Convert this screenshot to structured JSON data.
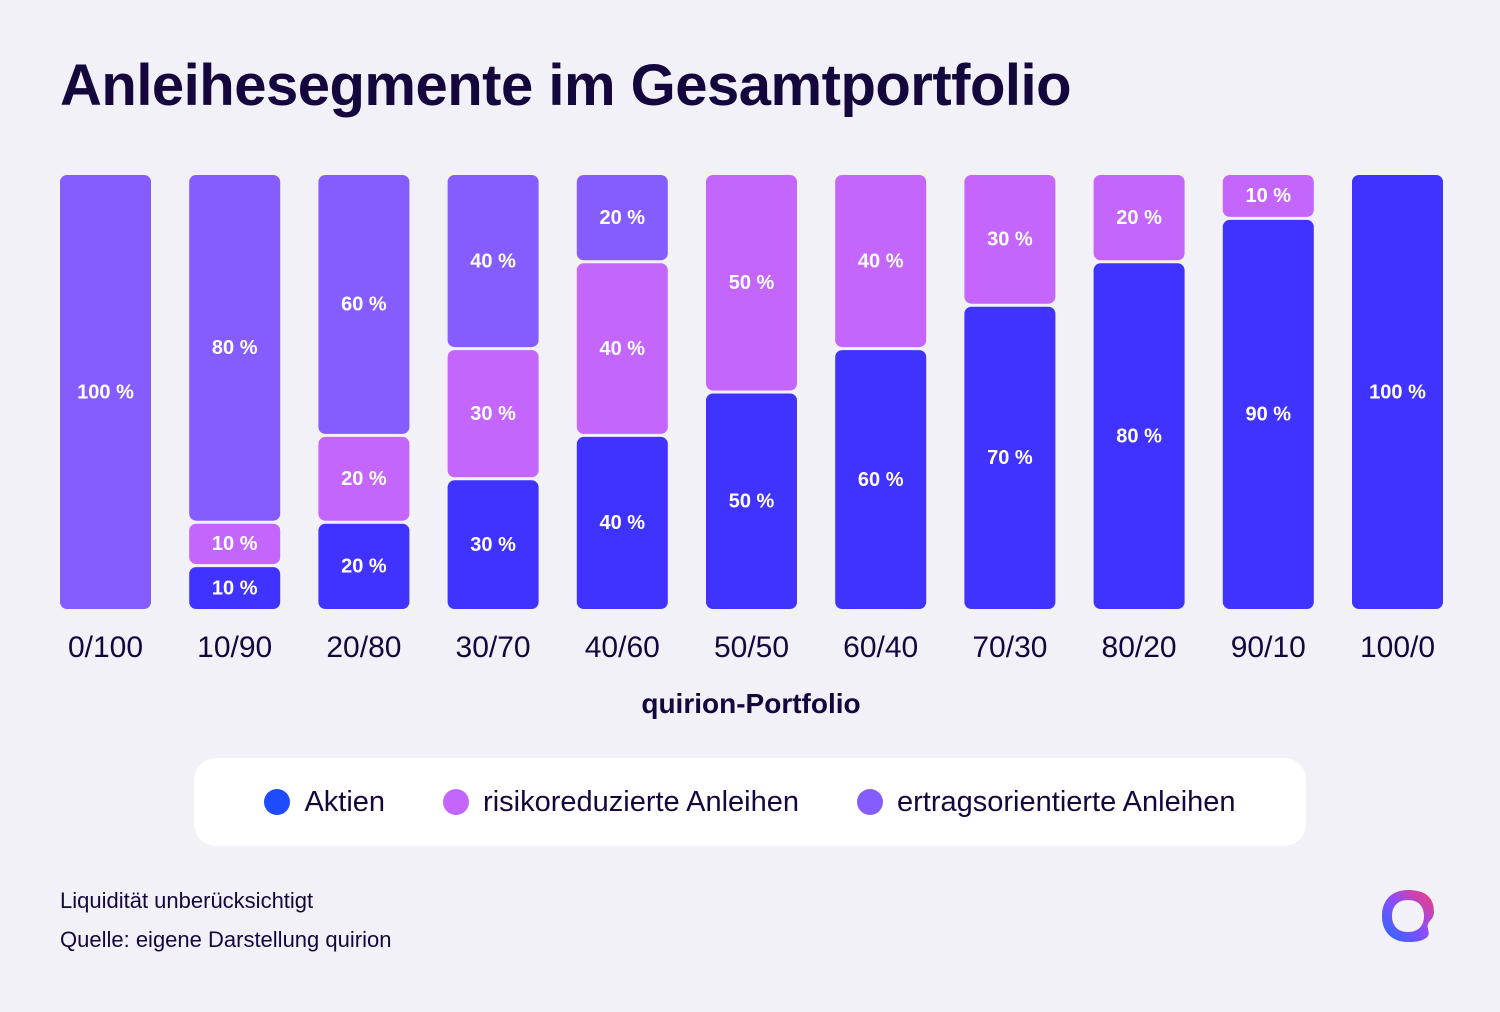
{
  "title": "Anleihesegmente im Gesamtportfolio",
  "colors": {
    "background": "#f2f1f7",
    "aktien": "#4032ff",
    "risikoreduzierte": "#c466fc",
    "ertragsorientierte": "#855dff",
    "text": "#15073d",
    "legend_aktien_dot": "#1f4bff"
  },
  "legend": {
    "items": [
      {
        "label": "Aktien",
        "color": "#1f4bff"
      },
      {
        "label": "risikoreduzierte Anleihen",
        "color": "#c466fc"
      },
      {
        "label": "ertragsorientierte Anleihen",
        "color": "#855dff"
      }
    ]
  },
  "footnotes": {
    "line1": "Liquidität unberücksichtigt",
    "line2": "Quelle: eigene Darstellung quirion"
  },
  "logo": {
    "icon": "quirion-logo-icon"
  },
  "chart_data": {
    "type": "bar",
    "stacked": true,
    "title": "Anleihesegmente im Gesamtportfolio",
    "xlabel": "quirion-Portfolio",
    "ylabel": "",
    "ylim": [
      0,
      100
    ],
    "grid": false,
    "legend_position": "bottom",
    "categories": [
      "0/100",
      "10/90",
      "20/80",
      "30/70",
      "40/60",
      "50/50",
      "60/40",
      "70/30",
      "80/20",
      "90/10",
      "100/0"
    ],
    "series": [
      {
        "name": "Aktien",
        "color": "#4032ff",
        "values": [
          0,
          10,
          20,
          30,
          40,
          50,
          60,
          70,
          80,
          90,
          100
        ]
      },
      {
        "name": "risikoreduzierte Anleihen",
        "color": "#c466fc",
        "values": [
          0,
          10,
          20,
          30,
          40,
          50,
          40,
          30,
          20,
          10,
          0
        ]
      },
      {
        "name": "ertragsorientierte Anleihen",
        "color": "#855dff",
        "values": [
          100,
          80,
          60,
          40,
          20,
          0,
          0,
          0,
          0,
          0,
          0
        ]
      }
    ],
    "value_suffix": " %"
  }
}
